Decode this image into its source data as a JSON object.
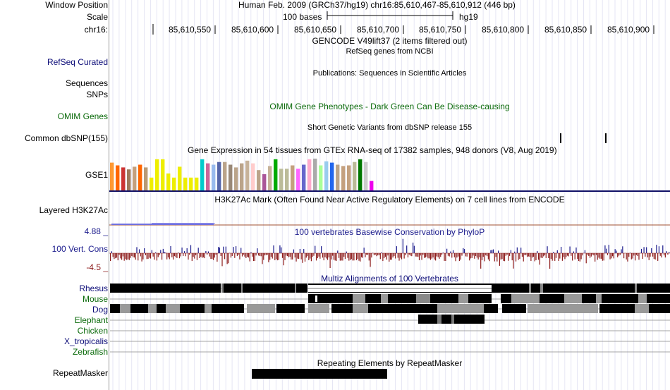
{
  "header": {
    "window_position_label": "Window Position",
    "window_position_value": "Human Feb. 2009 (GRCh37/hg19)   chr16:85,610,467-85,610,912 (446 bp)",
    "scale_label": "Scale",
    "scale_value": "100 bases",
    "scale_assembly": "hg19",
    "chrom_label": "chr16:",
    "ruler_ticks": [
      "85,610,550",
      "85,610,600",
      "85,610,650",
      "85,610,700",
      "85,610,750",
      "85,610,800",
      "85,610,850",
      "85,610,900"
    ]
  },
  "tracks": {
    "gencode_title": "GENCODE V49lift37 (2 items filtered out)",
    "refseq_title": "RefSeq genes from NCBI",
    "refseq_label": "RefSeq Curated",
    "publications_title": "Publications: Sequences in Scientific Articles",
    "sequences_label": "Sequences",
    "snps_label": "SNPs",
    "omim_label": "OMIM Genes",
    "omim_title": "OMIM Gene Phenotypes - Dark Green Can Be Disease-causing",
    "dbsnp_title": "Short Genetic Variants from dbSNP release 155",
    "dbsnp_label": "Common dbSNP(155)",
    "gtex_title": "Gene Expression in 54 tissues from GTEx RNA-seq of 17382 samples, 948 donors (V8, Aug 2019)",
    "gtex_label": "GSE1",
    "h3k27ac_title": "H3K27Ac Mark (Often Found Near Active Regulatory Elements) on 7 cell lines from ENCODE",
    "h3k27ac_label": "Layered H3K27Ac",
    "phylop_title": "100 vertebrates Basewise Conservation by PhyloP",
    "phylop_label": "100 Vert. Cons",
    "phylop_max": "4.88 _",
    "phylop_min": "-4.5 _",
    "multiz_title": "Multiz Alignments of 100 Vertebrates",
    "species": [
      "Rhesus",
      "Mouse",
      "Dog",
      "Elephant",
      "Chicken",
      "X_tropicalis",
      "Zebrafish"
    ],
    "repeat_title": "Repeating Elements by RepeatMasker",
    "repeat_label": "RepeatMasker"
  },
  "colors": {
    "refseq": "#0c0c78",
    "omim": "#0a6a0a",
    "phylop_pos": "#1a1a8c",
    "phylop_neg": "#8c1a1a",
    "multiz": "#0c0c78",
    "gtex_baseline": "#101066"
  },
  "gtex_bar_colors": [
    "#ff9933",
    "#ff6600",
    "#cc3333",
    "#9d7a5d",
    "#c4a07e",
    "#ff6600",
    "#b99a74",
    "#eeee00",
    "#eeee00",
    "#eeee00",
    "#eeee00",
    "#eeee00",
    "#eeee00",
    "#eeee00",
    "#eeee00",
    "#eeee00",
    "#00cccc",
    "#cc6699",
    "#99bbee",
    "#5566aa",
    "#bba48a",
    "#998877",
    "#bba48a",
    "#bba48a",
    "#c7b299",
    "#ffcccc",
    "#bba48a",
    "#aa5599",
    "#c7b299",
    "#00aa00",
    "#bbbb99",
    "#bbbb99",
    "#c4a07e",
    "#ff66ff",
    "#6666cc",
    "#ffaacc",
    "#aaaaaa",
    "#aaff99",
    "#99ccee",
    "#2266ee",
    "#bba48a",
    "#c4a07e",
    "#c4a07e",
    "#bbbb99",
    "#007700",
    "#cccccc",
    "#ee00ee"
  ],
  "gtex_bar_levels": [
    0.82,
    0.74,
    0.68,
    0.62,
    0.7,
    0.76,
    0.68,
    0.38,
    0.92,
    0.92,
    0.5,
    0.38,
    0.7,
    0.38,
    0.38,
    0.38,
    0.92,
    0.8,
    0.76,
    0.84,
    0.84,
    0.76,
    0.68,
    0.8,
    0.88,
    0.8,
    0.6,
    0.48,
    0.72,
    0.92,
    0.64,
    0.64,
    0.74,
    0.64,
    0.76,
    0.92,
    0.94,
    0.74,
    0.86,
    0.82,
    0.76,
    0.72,
    0.74,
    0.84,
    0.92,
    0.84,
    0.28
  ]
}
